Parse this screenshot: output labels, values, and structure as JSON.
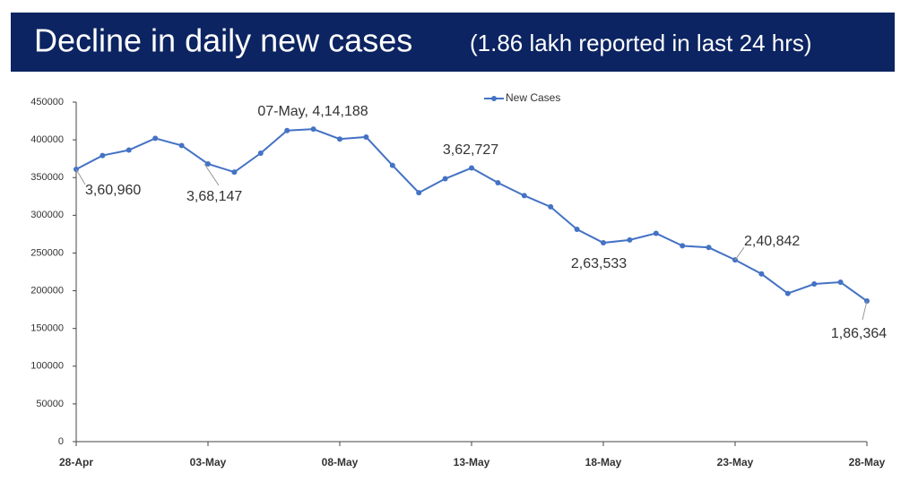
{
  "chart_data": {
    "type": "line",
    "title": "Decline in daily new cases",
    "subtitle": "(1.86 lakh reported in last 24 hrs)",
    "categories": [
      "28-Apr",
      null,
      null,
      null,
      null,
      "03-May",
      null,
      null,
      null,
      null,
      "08-May",
      null,
      null,
      null,
      null,
      "13-May",
      null,
      null,
      null,
      null,
      "18-May",
      null,
      null,
      null,
      null,
      "23-May",
      null,
      null,
      null,
      null,
      "28-May"
    ],
    "series": [
      {
        "name": "New Cases",
        "color": "#4472c4",
        "values": [
          360960,
          379257,
          386452,
          401993,
          392488,
          368147,
          357229,
          382315,
          412262,
          414188,
          401078,
          403738,
          366161,
          329942,
          348421,
          362727,
          343144,
          326098,
          311170,
          281386,
          263533,
          267334,
          276110,
          259551,
          257299,
          240842,
          222315,
          196427,
          208921,
          211298,
          186364
        ],
        "value_labels": [
          "3,60,960",
          null,
          null,
          null,
          null,
          "3,68,147",
          null,
          null,
          null,
          "07-May, 4,14,188",
          null,
          null,
          null,
          null,
          null,
          "3,62,727",
          null,
          null,
          null,
          null,
          "2,63,533",
          null,
          null,
          null,
          null,
          "2,40,842",
          null,
          null,
          null,
          null,
          "1,86,364"
        ]
      }
    ],
    "ylim": [
      0,
      450000
    ],
    "yticks": [
      0,
      50000,
      100000,
      150000,
      200000,
      250000,
      300000,
      350000,
      400000,
      450000
    ],
    "legend": "top",
    "grid": false
  }
}
